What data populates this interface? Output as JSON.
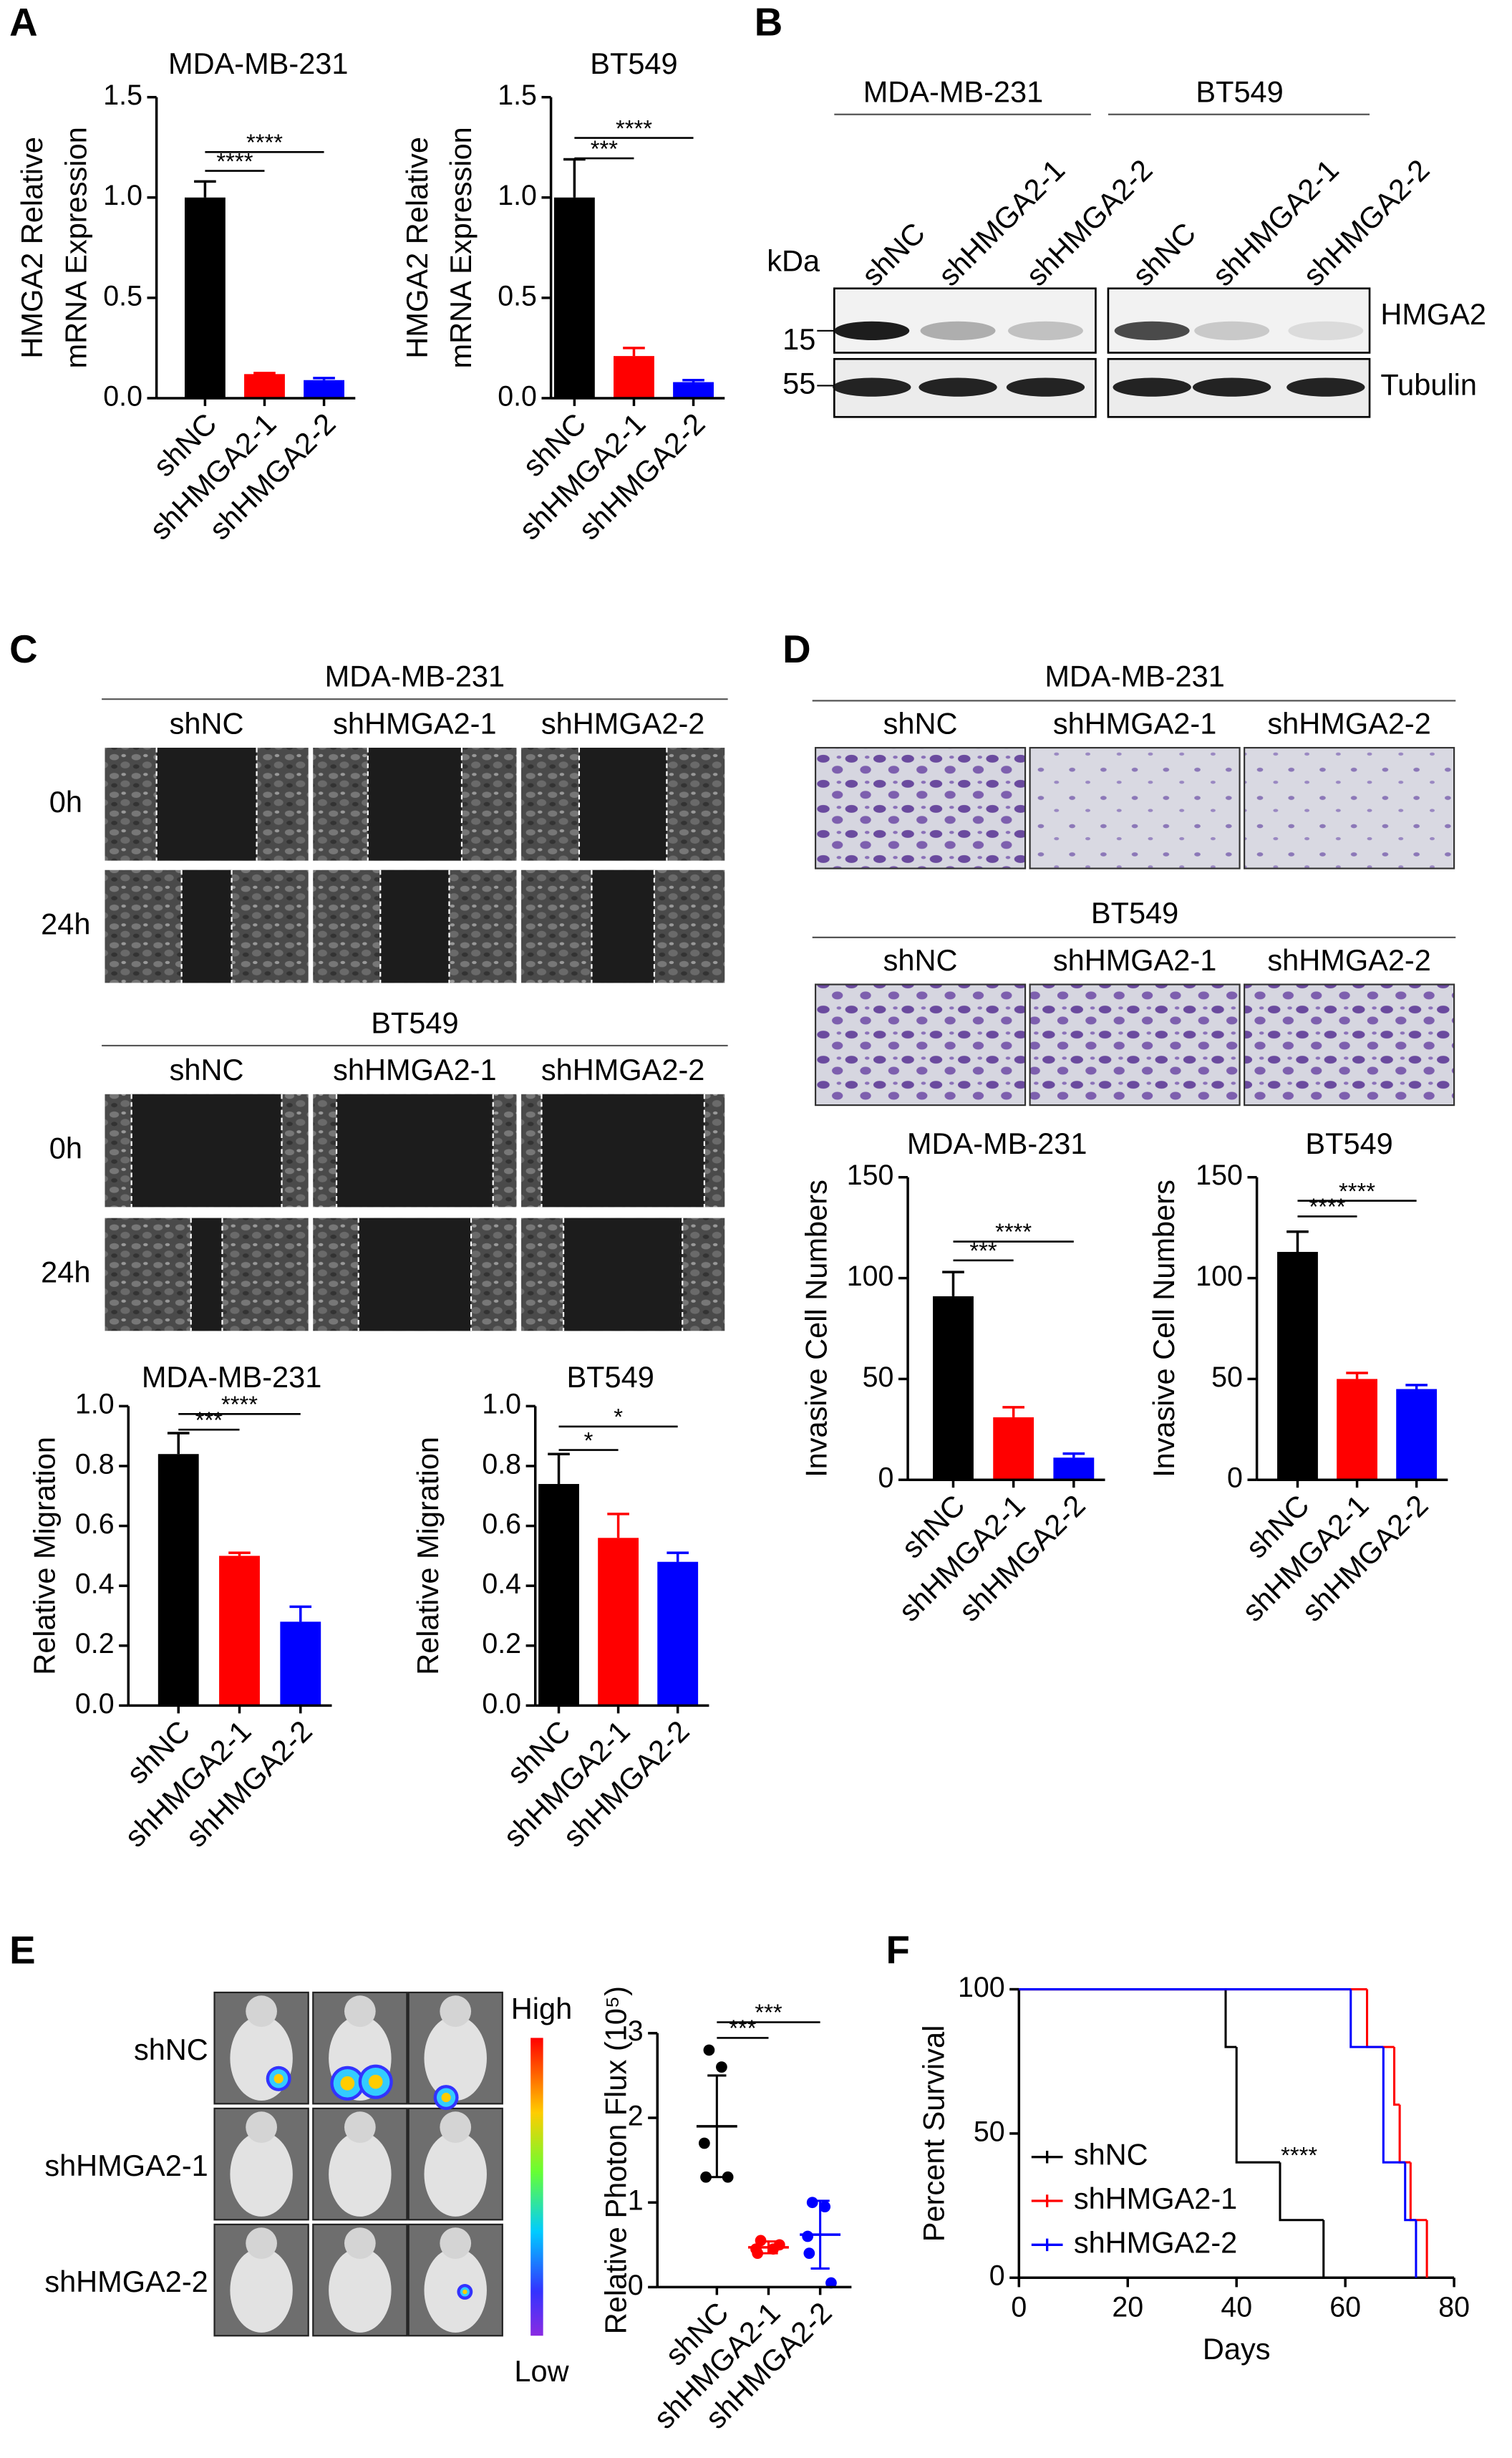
{
  "panel_labels": [
    "A",
    "B",
    "C",
    "D",
    "E",
    "F"
  ],
  "chart_data": [
    {
      "type": "bar",
      "title": "MDA-MB-231",
      "y_label": [
        "HMGA2 Relative",
        "mRNA Expression"
      ],
      "categories": [
        "shNC",
        "shHMGA2-1",
        "shHMGA2-2"
      ],
      "values": [
        1.0,
        0.12,
        0.09
      ],
      "errors": [
        0.08,
        0.005,
        0.01
      ],
      "colors": [
        "#000000",
        "#ff0000",
        "#0000ff"
      ],
      "ylim": [
        0,
        1.5
      ],
      "yticks": [
        {
          "value": 0,
          "label": "0.0"
        },
        0.5,
        {
          "value": 1,
          "label": "1.0"
        },
        1.5
      ],
      "comparisons": [
        {
          "groups": [
            "shNC",
            "shHMGA2-1"
          ],
          "label": "****"
        },
        {
          "groups": [
            "shNC",
            "shHMGA2-2"
          ],
          "label": "****"
        }
      ]
    },
    {
      "type": "bar",
      "title": "BT549",
      "y_label": [
        "HMGA2 Relative",
        "mRNA Expression"
      ],
      "categories": [
        "shNC",
        "shHMGA2-1",
        "shHMGA2-2"
      ],
      "values": [
        1.0,
        0.21,
        0.08
      ],
      "errors": [
        0.19,
        0.04,
        0.01
      ],
      "colors": [
        "#000000",
        "#ff0000",
        "#0000ff"
      ],
      "ylim": [
        0,
        1.5
      ],
      "yticks": [
        {
          "value": 0,
          "label": "0.0"
        },
        0.5,
        {
          "value": 1,
          "label": "1.0"
        },
        1.5
      ],
      "comparisons": [
        {
          "groups": [
            "shNC",
            "shHMGA2-1"
          ],
          "label": "***"
        },
        {
          "groups": [
            "shNC",
            "shHMGA2-2"
          ],
          "label": "****"
        }
      ]
    },
    {
      "type": "bar",
      "title": "MDA-MB-231",
      "y_label": [
        "Relative Migration"
      ],
      "categories": [
        "shNC",
        "shHMGA2-1",
        "shHMGA2-2"
      ],
      "values": [
        0.84,
        0.5,
        0.28
      ],
      "errors": [
        0.07,
        0.01,
        0.05
      ],
      "colors": [
        "#000000",
        "#ff0000",
        "#0000ff"
      ],
      "ylim": [
        0,
        1
      ],
      "yticks": [
        {
          "value": 0,
          "label": "0.0"
        },
        0.2,
        0.4,
        0.6,
        0.8,
        {
          "value": 1,
          "label": "1.0"
        }
      ],
      "comparisons": [
        {
          "groups": [
            "shNC",
            "shHMGA2-1"
          ],
          "label": "***"
        },
        {
          "groups": [
            "shNC",
            "shHMGA2-2"
          ],
          "label": "****"
        }
      ]
    },
    {
      "type": "bar",
      "title": "BT549",
      "y_label": [
        "Relative Migration"
      ],
      "categories": [
        "shNC",
        "shHMGA2-1",
        "shHMGA2-2"
      ],
      "values": [
        0.74,
        0.56,
        0.48
      ],
      "errors": [
        0.1,
        0.08,
        0.03
      ],
      "colors": [
        "#000000",
        "#ff0000",
        "#0000ff"
      ],
      "ylim": [
        0,
        1
      ],
      "yticks": [
        {
          "value": 0,
          "label": "0.0"
        },
        0.2,
        0.4,
        0.6,
        0.8,
        {
          "value": 1,
          "label": "1.0"
        }
      ],
      "comparisons": [
        {
          "groups": [
            "shNC",
            "shHMGA2-1"
          ],
          "label": "*"
        },
        {
          "groups": [
            "shNC",
            "shHMGA2-2"
          ],
          "label": "*"
        }
      ]
    },
    {
      "type": "bar",
      "title": "MDA-MB-231",
      "y_label": [
        "Invasive Cell Numbers"
      ],
      "categories": [
        "shNC",
        "shHMGA2-1",
        "shHMGA2-2"
      ],
      "values": [
        91,
        31,
        11
      ],
      "errors": [
        12,
        5,
        2
      ],
      "colors": [
        "#000000",
        "#ff0000",
        "#0000ff"
      ],
      "ylim": [
        0,
        150
      ],
      "yticks": [
        0,
        50,
        100,
        150
      ],
      "comparisons": [
        {
          "groups": [
            "shNC",
            "shHMGA2-1"
          ],
          "label": "***"
        },
        {
          "groups": [
            "shNC",
            "shHMGA2-2"
          ],
          "label": "****"
        }
      ]
    },
    {
      "type": "bar",
      "title": "BT549",
      "y_label": [
        "Invasive Cell Numbers"
      ],
      "categories": [
        "shNC",
        "shHMGA2-1",
        "shHMGA2-2"
      ],
      "values": [
        113,
        50,
        45
      ],
      "errors": [
        10,
        3,
        2
      ],
      "colors": [
        "#000000",
        "#ff0000",
        "#0000ff"
      ],
      "ylim": [
        0,
        150
      ],
      "yticks": [
        0,
        50,
        100,
        150
      ],
      "comparisons": [
        {
          "groups": [
            "shNC",
            "shHMGA2-1"
          ],
          "label": "****"
        },
        {
          "groups": [
            "shNC",
            "shHMGA2-2"
          ],
          "label": "****"
        }
      ]
    },
    {
      "type": "scatter",
      "y_label": [
        "Relative Photon Flux (10⁵)"
      ],
      "categories": [
        "shNC",
        "shHMGA2-1",
        "shHMGA2-2"
      ],
      "points": [
        [
          2.8,
          2.6,
          1.7,
          1.3,
          1.3
        ],
        [
          0.55,
          0.45,
          0.45,
          0.4,
          0.5
        ],
        [
          1.0,
          0.95,
          0.6,
          0.4,
          0.05
        ]
      ],
      "values": [
        1.9,
        0.47,
        0.62
      ],
      "errors": [
        0.6,
        0.07,
        0.4
      ],
      "colors": [
        "#000000",
        "#ff0000",
        "#0000ff"
      ],
      "ylim": [
        0,
        3
      ],
      "yticks": [
        0,
        1,
        2,
        3
      ],
      "comparisons": [
        {
          "groups": [
            "shNC",
            "shHMGA2-1"
          ],
          "label": "***"
        },
        {
          "groups": [
            "shNC",
            "shHMGA2-2"
          ],
          "label": "***"
        }
      ]
    },
    {
      "type": "line",
      "step": true,
      "x_label": "Days",
      "y_label": [
        "Percent Survival"
      ],
      "series": [
        {
          "name": "shNC",
          "color": "#000000",
          "x": [
            0,
            38,
            40,
            48,
            56
          ],
          "values": [
            100,
            80,
            40,
            20,
            0
          ]
        },
        {
          "name": "shHMGA2-1",
          "color": "#ff0000",
          "x": [
            0,
            64,
            69,
            70,
            72,
            75
          ],
          "values": [
            100,
            80,
            60,
            40,
            20,
            0
          ]
        },
        {
          "name": "shHMGA2-2",
          "color": "#0000ff",
          "x": [
            0,
            61,
            67,
            71,
            73
          ],
          "values": [
            100,
            80,
            40,
            20,
            0
          ]
        }
      ],
      "xlim": [
        0,
        80
      ],
      "xticks": [
        0,
        20,
        40,
        60,
        80
      ],
      "ylim": [
        0,
        100
      ],
      "yticks": [
        0,
        50,
        100
      ],
      "legend": "center left",
      "annotation": "****"
    }
  ],
  "blot": {
    "groups": [
      "MDA-MB-231",
      "BT549"
    ],
    "lanes": [
      "shNC",
      "shHMGA2-1",
      "shHMGA2-2",
      "shNC",
      "shHMGA2-1",
      "shHMGA2-2"
    ],
    "marker_unit": "kDa",
    "markers": [
      15,
      55
    ],
    "proteins": [
      "HMGA2",
      "Tubulin"
    ]
  },
  "wound": {
    "groups": [
      {
        "name": "MDA-MB-231",
        "columns": [
          "shNC",
          "shHMGA2-1",
          "shHMGA2-2"
        ],
        "rows": [
          "0h",
          "24h"
        ]
      },
      {
        "name": "BT549",
        "columns": [
          "shNC",
          "shHMGA2-1",
          "shHMGA2-2"
        ],
        "rows": [
          "0h",
          "24h"
        ]
      }
    ]
  },
  "invasion": {
    "groups": [
      {
        "name": "MDA-MB-231",
        "columns": [
          "shNC",
          "shHMGA2-1",
          "shHMGA2-2"
        ]
      },
      {
        "name": "BT549",
        "columns": [
          "shNC",
          "shHMGA2-1",
          "shHMGA2-2"
        ]
      }
    ]
  },
  "imaging": {
    "rows": [
      "shNC",
      "shHMGA2-1",
      "shHMGA2-2"
    ],
    "scale_high": "High",
    "scale_low": "Low"
  }
}
